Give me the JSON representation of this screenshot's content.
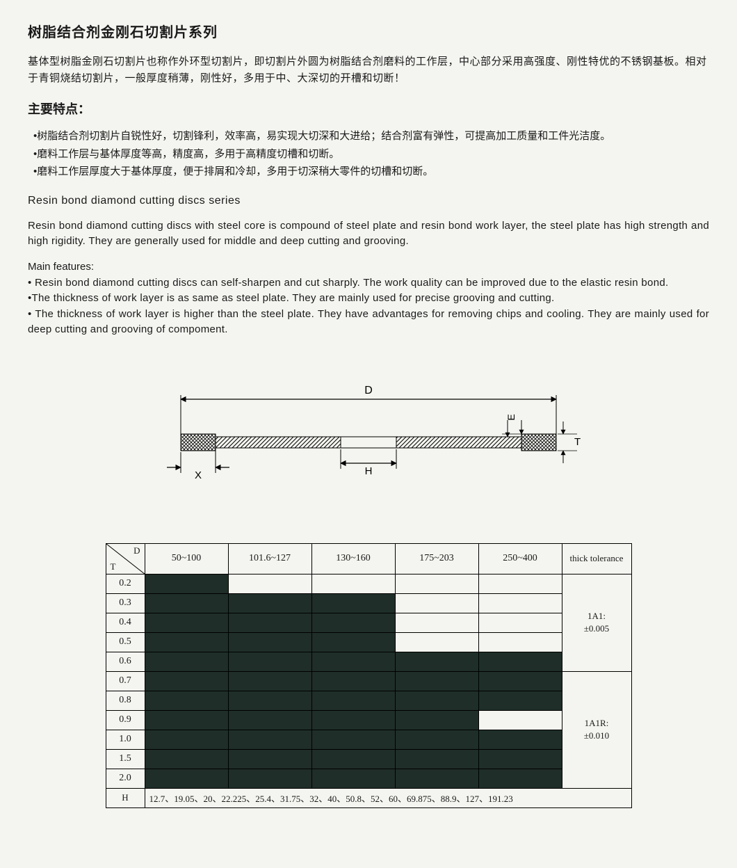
{
  "title_cn": "树脂结合剂金刚石切割片系列",
  "para_cn": "基体型树脂金刚石切割片也称作外环型切割片，即切割片外圆为树脂结合剂磨料的工作层，中心部分采用高强度、刚性特优的不锈钢基板。相对于青铜烧结切割片，一般厚度稍薄，刚性好，多用于中、大深切的开槽和切断！",
  "subtitle_cn": "主要特点：",
  "bullets_cn": [
    "•树脂结合剂切割片自锐性好，切割锋利，效率高，易实现大切深和大进给；结合剂富有弹性，可提高加工质量和工件光洁度。",
    "•磨料工作层与基体厚度等高，精度高，多用于高精度切槽和切断。",
    "•磨料工作层厚度大于基体厚度，便于排屑和冷却，多用于切深稍大零件的切槽和切断。"
  ],
  "title_en": "Resin bond diamond cutting discs series",
  "para_en": "Resin bond diamond cutting discs with steel core is compound of steel plate and resin bond work layer, the steel plate has high strength and high rigidity. They are generally used for middle and deep cutting and grooving.",
  "subtitle_en": "Main features:",
  "bullets_en": [
    "• Resin bond diamond cutting discs can self-sharpen and cut sharply. The work quality can be improved due to the elastic resin bond.",
    "•The thickness of work layer is as same as steel plate. They are mainly used for precise grooving and cutting.",
    "• The thickness of work layer is higher than the steel plate. They have advantages for removing chips and cooling. They are mainly used for deep cutting and grooving of compoment."
  ],
  "diagram": {
    "labels": {
      "D": "D",
      "H": "H",
      "X": "X",
      "E": "E",
      "T": "T"
    },
    "stroke": "#000000",
    "hatch": "#000000",
    "bg": "#f4f5f0"
  },
  "table": {
    "corner": {
      "D": "D",
      "T": "T"
    },
    "d_headers": [
      "50~100",
      "101.6~127",
      "130~160",
      "175~203",
      "250~400"
    ],
    "tol_header": "thick tolerance",
    "t_values": [
      "0.2",
      "0.3",
      "0.4",
      "0.5",
      "0.6",
      "0.7",
      "0.8",
      "0.9",
      "1.0",
      "1.5",
      "2.0"
    ],
    "fill_matrix": [
      [
        1,
        0,
        0,
        0,
        0
      ],
      [
        1,
        1,
        1,
        0,
        0
      ],
      [
        1,
        1,
        1,
        0,
        0
      ],
      [
        1,
        1,
        1,
        0,
        0
      ],
      [
        1,
        1,
        1,
        1,
        1
      ],
      [
        1,
        1,
        1,
        1,
        1
      ],
      [
        1,
        1,
        1,
        1,
        1
      ],
      [
        1,
        1,
        1,
        1,
        0
      ],
      [
        1,
        1,
        1,
        1,
        1
      ],
      [
        1,
        1,
        1,
        1,
        1
      ],
      [
        1,
        1,
        1,
        1,
        1
      ]
    ],
    "tolerance_groups": [
      {
        "label": "1A1:\n±0.005",
        "rowspan": 5
      },
      {
        "label": "1A1R:\n±0.010",
        "rowspan": 6
      }
    ],
    "h_label": "H",
    "h_values": "12.7、19.05、20、22.225、25.4、31.75、32、40、50.8、52、60、69.875、88.9、127、191.23",
    "fill_color": "#1f2e29",
    "border_color": "#000000",
    "bg_color": "#f4f5f0"
  }
}
